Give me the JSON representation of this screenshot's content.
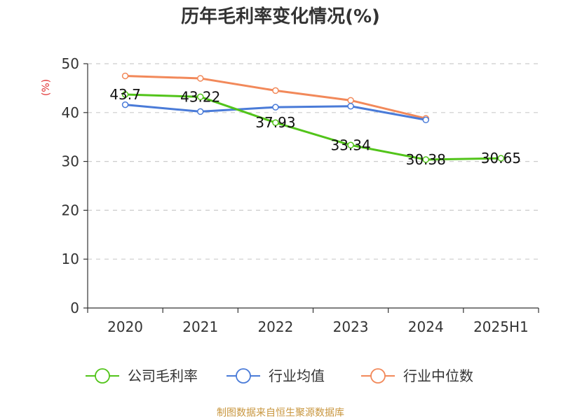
{
  "chart_data": {
    "type": "line",
    "title": "历年毛利率变化情况(%)",
    "ylabel": "(%)",
    "categories": [
      "2020",
      "2021",
      "2022",
      "2023",
      "2024",
      "2025H1"
    ],
    "yticks": [
      "0",
      "10",
      "20",
      "30",
      "40",
      "50"
    ],
    "ylim": [
      0,
      50
    ],
    "grid": "horizontal dashed",
    "legend_position": "bottom",
    "series": [
      {
        "name": "公司毛利率",
        "color": "#52c41a",
        "labels": true,
        "values": [
          43.7,
          43.22,
          37.93,
          33.34,
          30.38,
          30.65
        ],
        "value_labels": [
          "43.7",
          "43.22",
          "37.93",
          "33.34",
          "30.38",
          "30.65"
        ]
      },
      {
        "name": "行业均值",
        "color": "#4a7bd8",
        "labels": false,
        "values": [
          41.6,
          40.2,
          41.1,
          41.3,
          38.5,
          null
        ]
      },
      {
        "name": "行业中位数",
        "color": "#f2895a",
        "labels": false,
        "values": [
          47.5,
          47.0,
          44.5,
          42.5,
          38.8,
          null
        ]
      }
    ]
  },
  "source": "制图数据来自恒生聚源数据库",
  "colors": {
    "title": "#333333",
    "ylabel": "#e03030",
    "source": "#c8963e",
    "grid": "#cccccc",
    "axis": "#333333"
  }
}
